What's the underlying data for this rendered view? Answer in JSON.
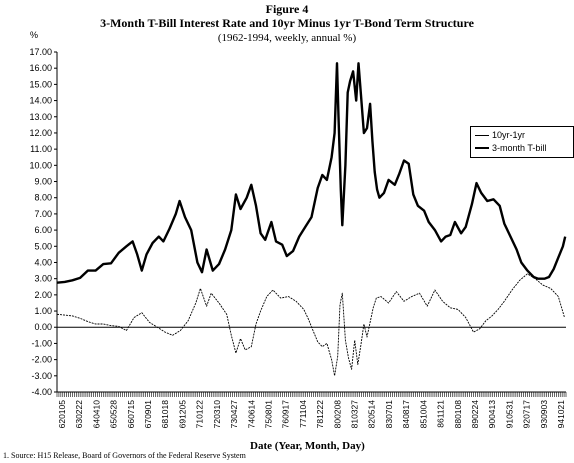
{
  "figure_label": "Figure 4",
  "title": "3-Month T-Bill Interest Rate and 10yr Minus 1yr T-Bond Term Structure",
  "subtitle": "(1962-1994, weekly, annual %)",
  "unit_label": "%",
  "xlabel": "Date (Year, Month, Day)",
  "source": "1. Source: H15 Release, Board of Governors of the Federal Reserve System",
  "chart_data": {
    "type": "line",
    "ylim": [
      -4.0,
      17.0
    ],
    "ytick_step": 1.0,
    "ytick_decimals": 2,
    "xlim": [
      1962.0,
      1995.0
    ],
    "grid": false,
    "legend_position": "right",
    "zero_line": true,
    "x_tick_labels": [
      "620105",
      "630222",
      "640410",
      "650528",
      "660715",
      "670901",
      "681018",
      "691205",
      "710122",
      "720310",
      "730427",
      "740614",
      "750801",
      "760917",
      "771104",
      "781222",
      "800208",
      "810327",
      "820514",
      "830701",
      "840817",
      "851004",
      "861121",
      "880108",
      "890224",
      "900413",
      "910531",
      "920717",
      "930903",
      "941021"
    ],
    "series": [
      {
        "name": "3-month T-bill",
        "stroke": "thick",
        "x": [
          1962.0,
          1962.5,
          1963.0,
          1963.5,
          1964.0,
          1964.5,
          1965.0,
          1965.5,
          1966.0,
          1966.5,
          1966.9,
          1967.2,
          1967.5,
          1967.8,
          1968.2,
          1968.6,
          1968.9,
          1969.3,
          1969.7,
          1969.95,
          1970.3,
          1970.7,
          1971.1,
          1971.4,
          1971.7,
          1972.1,
          1972.5,
          1972.9,
          1973.3,
          1973.6,
          1973.9,
          1974.3,
          1974.6,
          1974.9,
          1975.2,
          1975.5,
          1975.9,
          1976.2,
          1976.6,
          1976.9,
          1977.3,
          1977.7,
          1978.1,
          1978.5,
          1978.9,
          1979.2,
          1979.5,
          1979.8,
          1980.0,
          1980.15,
          1980.25,
          1980.4,
          1980.5,
          1980.7,
          1980.85,
          1981.0,
          1981.2,
          1981.4,
          1981.55,
          1981.7,
          1981.9,
          1982.1,
          1982.3,
          1982.45,
          1982.6,
          1982.75,
          1982.9,
          1983.2,
          1983.5,
          1983.9,
          1984.2,
          1984.5,
          1984.8,
          1985.1,
          1985.4,
          1985.8,
          1986.1,
          1986.5,
          1986.9,
          1987.2,
          1987.5,
          1987.8,
          1988.2,
          1988.5,
          1988.9,
          1989.2,
          1989.5,
          1989.9,
          1990.3,
          1990.7,
          1991.0,
          1991.4,
          1991.8,
          1992.1,
          1992.5,
          1992.9,
          1993.2,
          1993.6,
          1993.9,
          1994.2,
          1994.5,
          1994.8,
          1994.95
        ],
        "values": [
          2.75,
          2.8,
          2.9,
          3.05,
          3.5,
          3.5,
          3.9,
          3.95,
          4.6,
          5.0,
          5.3,
          4.5,
          3.5,
          4.5,
          5.2,
          5.6,
          5.3,
          6.1,
          7.0,
          7.8,
          6.8,
          6.0,
          4.0,
          3.4,
          4.8,
          3.5,
          3.9,
          4.8,
          6.0,
          8.2,
          7.3,
          8.0,
          8.8,
          7.5,
          5.8,
          5.4,
          6.5,
          5.3,
          5.1,
          4.4,
          4.7,
          5.6,
          6.2,
          6.8,
          8.6,
          9.4,
          9.1,
          10.5,
          12.0,
          16.3,
          13.0,
          8.5,
          6.3,
          10.0,
          14.5,
          15.2,
          15.8,
          14.0,
          16.3,
          14.4,
          12.0,
          12.3,
          13.8,
          11.5,
          9.6,
          8.5,
          8.0,
          8.3,
          9.1,
          8.8,
          9.5,
          10.3,
          10.1,
          8.2,
          7.5,
          7.2,
          6.5,
          6.0,
          5.3,
          5.6,
          5.7,
          6.5,
          5.8,
          6.2,
          7.6,
          8.9,
          8.3,
          7.8,
          7.9,
          7.5,
          6.4,
          5.6,
          4.8,
          4.0,
          3.5,
          3.1,
          3.0,
          3.0,
          3.1,
          3.6,
          4.3,
          5.0,
          5.6
        ]
      },
      {
        "name": "10yr-1yr",
        "stroke": "thin",
        "x": [
          1962.0,
          1962.5,
          1963.0,
          1963.5,
          1964.0,
          1964.5,
          1965.0,
          1965.5,
          1966.0,
          1966.5,
          1967.0,
          1967.5,
          1968.0,
          1968.5,
          1969.0,
          1969.5,
          1970.0,
          1970.5,
          1971.0,
          1971.3,
          1971.7,
          1972.0,
          1972.5,
          1973.0,
          1973.3,
          1973.6,
          1973.9,
          1974.2,
          1974.6,
          1974.9,
          1975.2,
          1975.6,
          1976.0,
          1976.5,
          1977.0,
          1977.5,
          1978.0,
          1978.3,
          1978.6,
          1978.9,
          1979.2,
          1979.5,
          1979.8,
          1980.0,
          1980.2,
          1980.35,
          1980.5,
          1980.7,
          1980.9,
          1981.1,
          1981.3,
          1981.5,
          1981.7,
          1981.9,
          1982.1,
          1982.3,
          1982.5,
          1982.7,
          1983.0,
          1983.5,
          1984.0,
          1984.5,
          1985.0,
          1985.5,
          1986.0,
          1986.5,
          1987.0,
          1987.5,
          1988.0,
          1988.5,
          1989.0,
          1989.4,
          1989.8,
          1990.2,
          1990.6,
          1991.0,
          1991.5,
          1992.0,
          1992.5,
          1993.0,
          1993.5,
          1994.0,
          1994.5,
          1994.9
        ],
        "values": [
          0.8,
          0.75,
          0.7,
          0.55,
          0.35,
          0.2,
          0.2,
          0.1,
          0.05,
          -0.2,
          0.6,
          0.9,
          0.3,
          0.0,
          -0.3,
          -0.5,
          -0.2,
          0.4,
          1.5,
          2.4,
          1.3,
          2.1,
          1.5,
          0.8,
          -0.5,
          -1.6,
          -0.7,
          -1.4,
          -1.2,
          0.2,
          1.0,
          1.9,
          2.3,
          1.8,
          1.9,
          1.6,
          1.1,
          0.5,
          -0.2,
          -0.9,
          -1.2,
          -1.0,
          -2.0,
          -3.0,
          -1.8,
          1.4,
          2.1,
          -0.8,
          -1.9,
          -2.6,
          -0.8,
          -2.3,
          -1.1,
          0.2,
          -0.6,
          0.3,
          1.2,
          1.8,
          1.9,
          1.5,
          2.2,
          1.6,
          1.9,
          2.1,
          1.3,
          2.3,
          1.6,
          1.2,
          1.1,
          0.6,
          -0.3,
          -0.1,
          0.4,
          0.7,
          1.1,
          1.6,
          2.3,
          2.9,
          3.3,
          3.0,
          2.6,
          2.4,
          1.9,
          0.6
        ]
      }
    ]
  }
}
